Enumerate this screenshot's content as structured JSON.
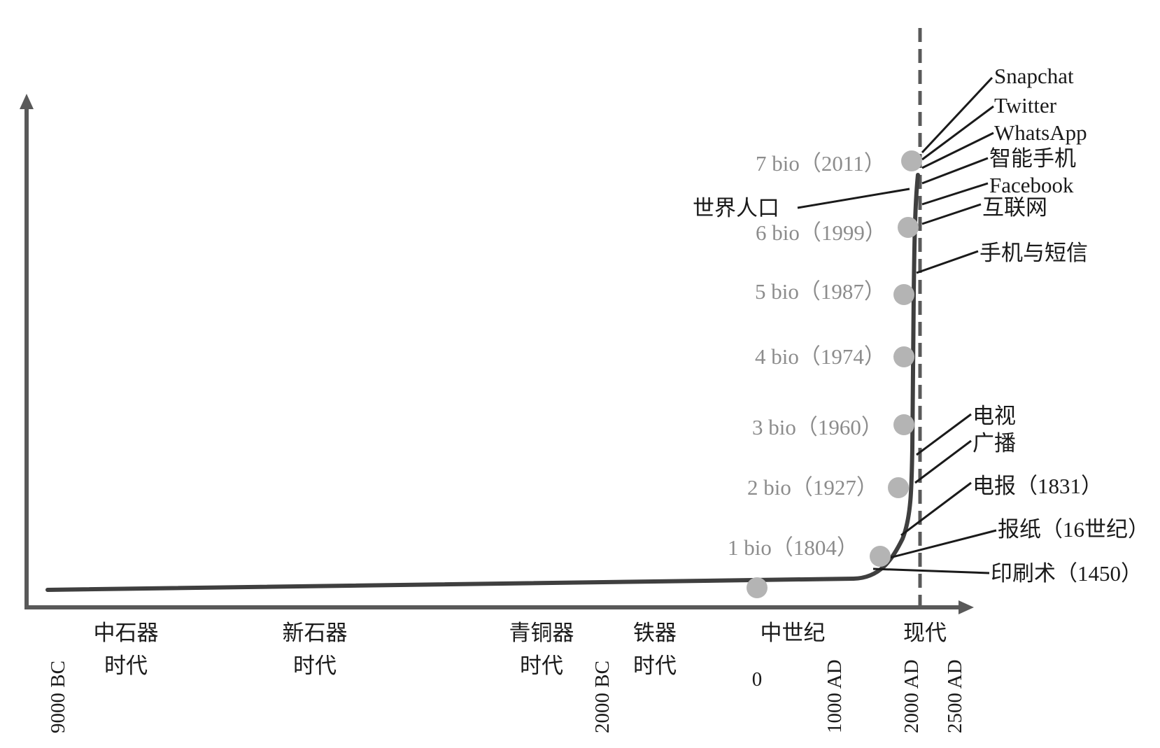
{
  "figure": {
    "x_axis_ticks": [
      "9000 BC",
      "2000 BC",
      "0",
      "1000 AD",
      "2000 AD",
      "2500 AD"
    ],
    "eras": [
      {
        "line1": "中石器",
        "line2": "时代"
      },
      {
        "line1": "新石器",
        "line2": "时代"
      },
      {
        "line1": "青铜器",
        "line2": "时代"
      },
      {
        "line1": "铁器",
        "line2": "时代"
      },
      {
        "line1": "中世纪",
        "line2": ""
      },
      {
        "line1": "现代",
        "line2": ""
      }
    ],
    "curve_label": "世界人口",
    "population_points": [
      {
        "label": "1 bio（1804）",
        "year": 1804,
        "billions": 1
      },
      {
        "label": "2 bio（1927）",
        "year": 1927,
        "billions": 2
      },
      {
        "label": "3 bio（1960）",
        "year": 1960,
        "billions": 3
      },
      {
        "label": "4 bio（1974）",
        "year": 1974,
        "billions": 4
      },
      {
        "label": "5 bio（1987）",
        "year": 1987,
        "billions": 5
      },
      {
        "label": "6 bio（1999）",
        "year": 1999,
        "billions": 6
      },
      {
        "label": "7 bio（2011）",
        "year": 2011,
        "billions": 7
      }
    ],
    "events": [
      "Snapchat",
      "Twitter",
      "WhatsApp",
      "智能手机",
      "Facebook",
      "互联网",
      "手机与短信",
      "电视",
      "广播",
      "电报（1831）",
      "报纸（16世纪）",
      "印刷术（1450）"
    ],
    "colors": {
      "axis": "#595959",
      "curve": "#3f3f3f",
      "dots": "#b4b4b4",
      "present_line": "#595959"
    }
  }
}
